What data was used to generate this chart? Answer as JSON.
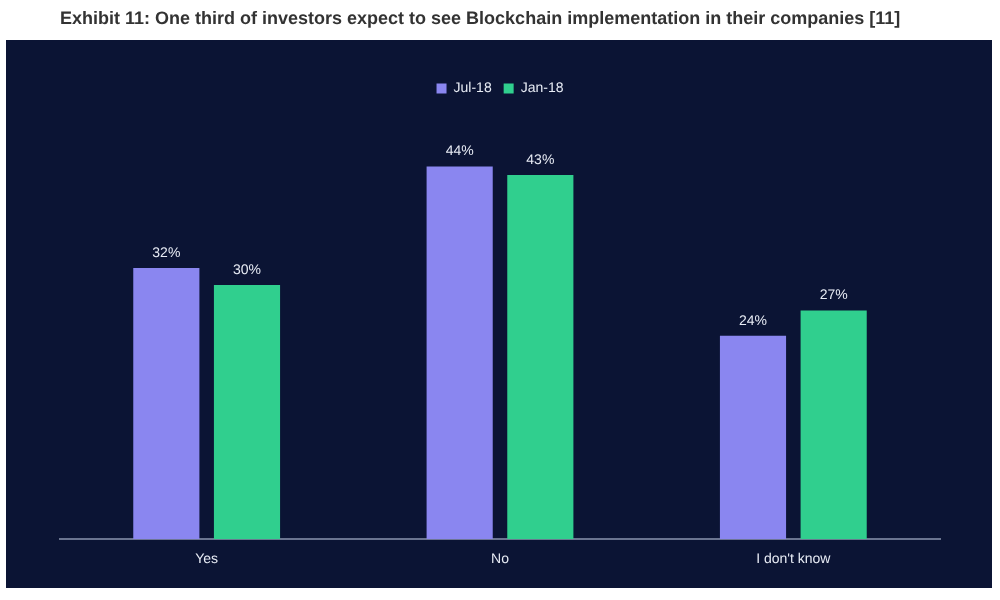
{
  "chart_data": {
    "type": "bar",
    "title": "Exhibit 11: One third of investors expect to see Blockchain implementation in their companies [11]",
    "categories": [
      "Yes",
      "No",
      "I don't know"
    ],
    "series": [
      {
        "name": "Jul-18",
        "color": "#8a86f0",
        "values": [
          32,
          44,
          24
        ],
        "value_labels": [
          "32%",
          "44%",
          "24%"
        ]
      },
      {
        "name": "Jan-18",
        "color": "#30cf8e",
        "values": [
          30,
          43,
          27
        ],
        "value_labels": [
          "30%",
          "43%",
          "27%"
        ]
      }
    ],
    "legend": "top",
    "grid": false
  }
}
